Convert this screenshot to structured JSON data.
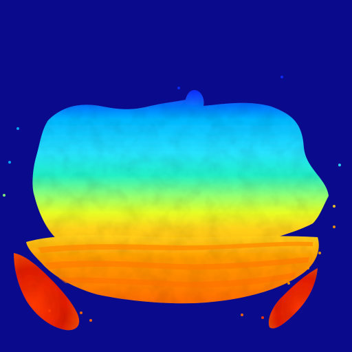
{
  "image": {
    "kind": "depth-map-heatmap",
    "colormap": "jet",
    "colors": {
      "background": "#0a0a8c",
      "near_blue": "#0d2bff",
      "sky_blue": "#00b7ff",
      "cyan": "#26e2ff",
      "teal": "#20f0c8",
      "green": "#8cff78",
      "yellow": "#e6ff26",
      "yellow_orange": "#ffd11a",
      "orange": "#ff9a00",
      "dark_orange": "#ff6a00",
      "red_orange": "#ff3a00",
      "red": "#e01b00"
    }
  }
}
